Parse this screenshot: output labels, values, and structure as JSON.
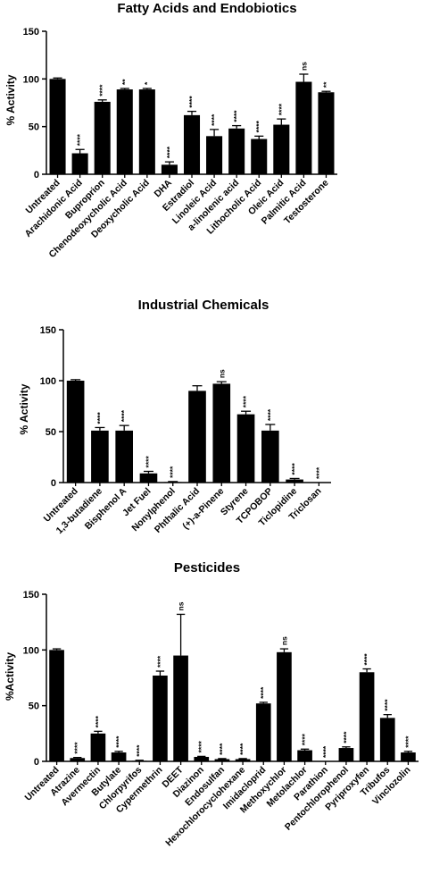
{
  "chart_data": [
    {
      "type": "bar",
      "title": "Fatty Acids and Endobiotics",
      "ylabel": "% Activity",
      "ylim": [
        0,
        150
      ],
      "yticks": [
        "0",
        "50",
        "100",
        "150"
      ],
      "categories": [
        "Untreated",
        "Arachidonic Acid",
        "Buproprion",
        "Chenodeoxycholic Acid",
        "Deoxycholic Acid",
        "DHA",
        "Estradiol",
        "Linoleic Acid",
        "a-linolenic acid",
        "Lithocholic Acid",
        "Oleic Acid",
        "Palmitic Acid",
        "Testosterone"
      ],
      "values": [
        100,
        22,
        76,
        89,
        89,
        10,
        62,
        40,
        48,
        37,
        52,
        97,
        86
      ],
      "errors": [
        1,
        4,
        2,
        1,
        1,
        3,
        4,
        7,
        3,
        3,
        6,
        8,
        1
      ],
      "significance": [
        "",
        "****",
        "****",
        "**",
        "*",
        "****",
        "****",
        "****",
        "****",
        "****",
        "****",
        "ns",
        "**"
      ]
    },
    {
      "type": "bar",
      "title": "Industrial Chemicals",
      "ylabel": "% Activity",
      "ylim": [
        0,
        150
      ],
      "yticks": [
        "0",
        "50",
        "100",
        "150"
      ],
      "categories": [
        "Untreated",
        "1,3-butadiene",
        "Bisphenol A",
        "Jet Fuel",
        "Nonylphenol",
        "Phthalic Acid",
        "(+)-a-Pinene",
        "Styrene",
        "TCPOBOP",
        "Ticlopidine",
        "Triclosan"
      ],
      "values": [
        100,
        51,
        51,
        9,
        0.5,
        90,
        97,
        67,
        51,
        3,
        0
      ],
      "errors": [
        1,
        3,
        5,
        2,
        0.5,
        5,
        2,
        3,
        6,
        1,
        0
      ],
      "significance": [
        "",
        "****",
        "****",
        "****",
        "****",
        "",
        "ns",
        "****",
        "****",
        "****",
        "****"
      ]
    },
    {
      "type": "bar",
      "title": "Pesticides",
      "ylabel": "%Activity",
      "ylim": [
        0,
        150
      ],
      "yticks": [
        "0",
        "50",
        "100",
        "150"
      ],
      "categories": [
        "Untreated",
        "Atrazine",
        "Avermectin",
        "Butylate",
        "Chlorpyrifos",
        "Cypermethrin",
        "DEET",
        "Diazinon",
        "Endosulfan",
        "Hexochlorocyclohexane",
        "Imidacloprid",
        "Methoxychlor",
        "Metolachlor",
        "Parathion",
        "Pentochlorophenol",
        "Pyriproxyfen",
        "Tribufos",
        "Vinclozolin"
      ],
      "values": [
        100,
        3,
        25,
        8,
        0.5,
        77,
        95,
        4,
        2,
        2,
        52,
        98,
        10,
        0,
        12,
        80,
        39,
        8
      ],
      "errors": [
        1,
        0.5,
        2,
        1,
        0.5,
        4,
        37,
        0.5,
        0.5,
        0.5,
        1,
        3,
        1,
        0,
        1,
        3,
        3,
        1
      ],
      "significance": [
        "",
        "****",
        "****",
        "****",
        "****",
        "****",
        "ns",
        "****",
        "****",
        "****",
        "****",
        "ns",
        "****",
        "****",
        "****",
        "****",
        "****",
        "****"
      ]
    }
  ]
}
